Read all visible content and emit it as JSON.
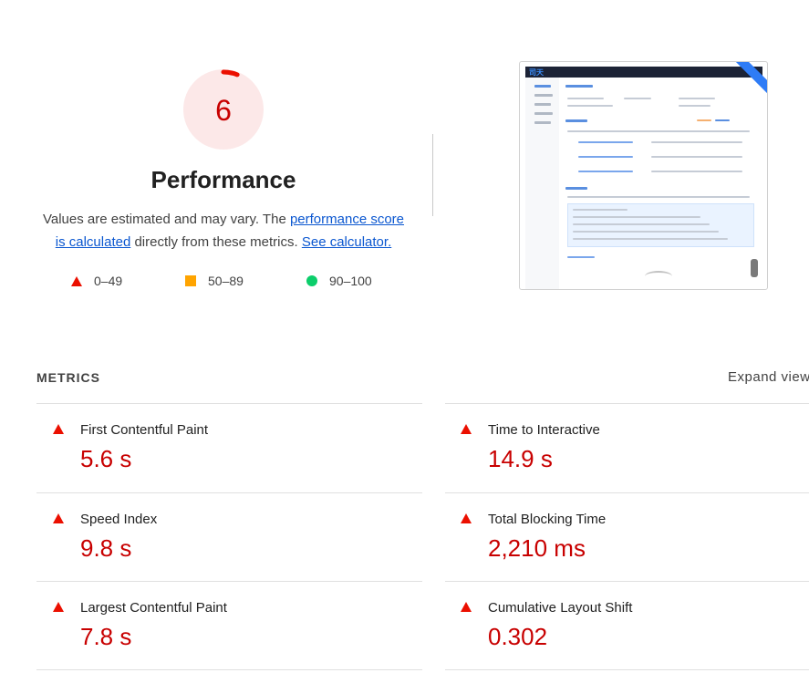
{
  "performance": {
    "score": "6",
    "score_fraction": 0.06,
    "title": "Performance",
    "desc_prefix": "Values are estimated and may vary. The ",
    "desc_link1": "performance score is calculated",
    "desc_middle": " directly from these metrics. ",
    "desc_link2": "See calculator.",
    "colors": {
      "fail": "#eb0f00",
      "fail_text": "#c80000",
      "average": "#ffa400",
      "pass": "#0cce6b"
    }
  },
  "legend": [
    {
      "shape": "triangle-icon",
      "label": "0–49"
    },
    {
      "shape": "square-icon",
      "label": "50–89"
    },
    {
      "shape": "circle-icon",
      "label": "90–100"
    }
  ],
  "thumbnail": {
    "logo": "司天"
  },
  "metrics": {
    "heading": "METRICS",
    "expand_label": "Expand view",
    "items": [
      {
        "name": "First Contentful Paint",
        "value": "5.6 s"
      },
      {
        "name": "Time to Interactive",
        "value": "14.9 s"
      },
      {
        "name": "Speed Index",
        "value": "9.8 s"
      },
      {
        "name": "Total Blocking Time",
        "value": "2,210 ms"
      },
      {
        "name": "Largest Contentful Paint",
        "value": "7.8 s"
      },
      {
        "name": "Cumulative Layout Shift",
        "value": "0.302"
      }
    ]
  }
}
